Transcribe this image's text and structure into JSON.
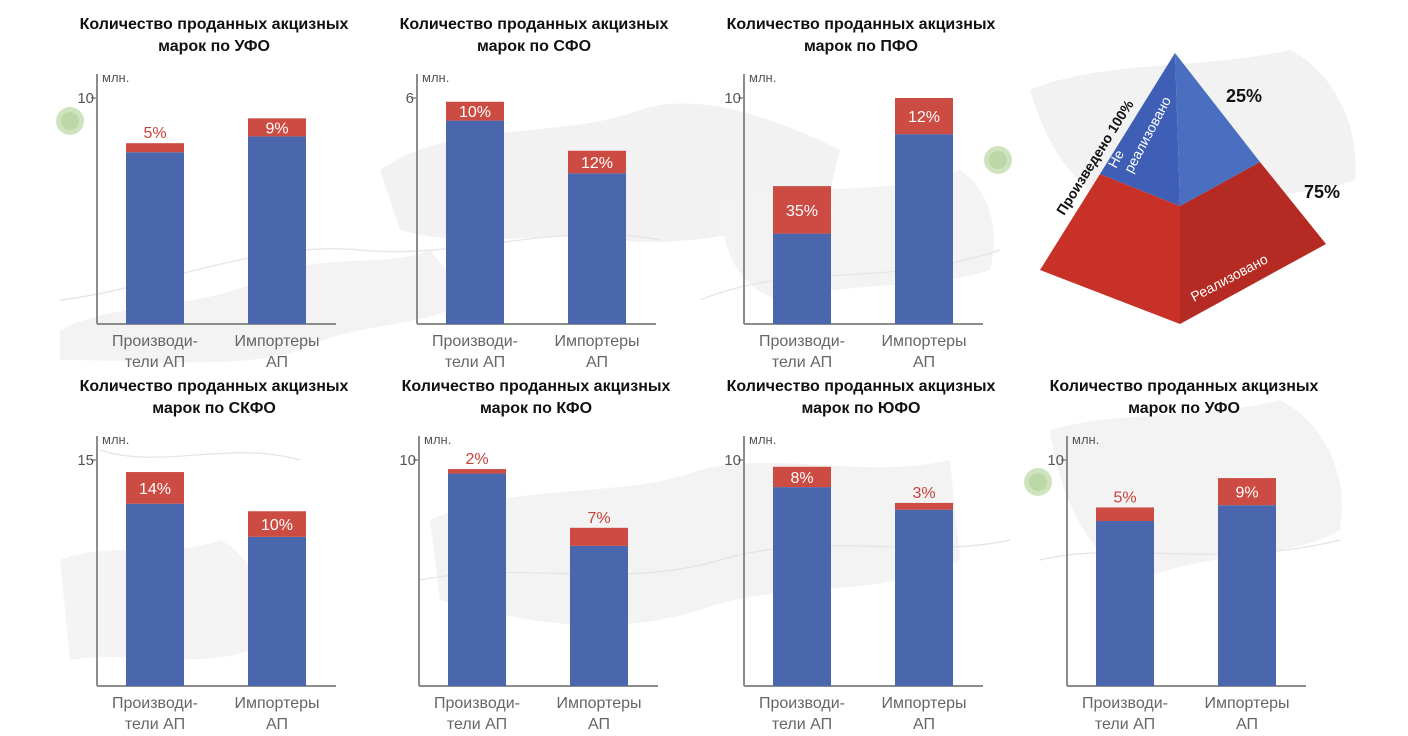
{
  "colors": {
    "produced_blue": "#4a67ae",
    "excess_red": "#cc4b43",
    "label_red": "#c8413a",
    "axis_grey": "#8c8c8c",
    "pyramid_red": "#c83127",
    "pyramid_blue": "#3e5fb5"
  },
  "charts": [
    {
      "title_line1": "Количество проданных акцизных",
      "title_line2": "марок по УФО",
      "unit": "млн.",
      "ytick": "10",
      "chart_data": {
        "type": "bar",
        "stacked": true,
        "ylim": [
          0,
          10
        ],
        "ytick_value": 10,
        "categories": [
          [
            "Производи-",
            "тели АП"
          ],
          [
            "Импортеры",
            "АП"
          ]
        ],
        "values": [
          7.6,
          8.3
        ],
        "tops": [
          8.0,
          9.1
        ],
        "labels": [
          "5%",
          "9%"
        ],
        "label_inside": [
          false,
          true
        ]
      }
    },
    {
      "title_line1": "Количество проданных акцизных",
      "title_line2": "марок по СФО",
      "unit": "млн.",
      "ytick": "6",
      "chart_data": {
        "type": "bar",
        "stacked": true,
        "ylim": [
          0,
          6
        ],
        "ytick_value": 6,
        "categories": [
          [
            "Производи-",
            "тели АП"
          ],
          [
            "Импортеры",
            "АП"
          ]
        ],
        "values": [
          5.4,
          4.0
        ],
        "tops": [
          5.9,
          4.6
        ],
        "labels": [
          "10%",
          "12%"
        ],
        "label_inside": [
          true,
          true
        ]
      }
    },
    {
      "title_line1": "Количество проданных акцизных",
      "title_line2": "марок по ПФО",
      "unit": "млн.",
      "ytick": "10",
      "chart_data": {
        "type": "bar",
        "stacked": true,
        "ylim": [
          0,
          10
        ],
        "ytick_value": 10,
        "categories": [
          [
            "Производи-",
            "тели АП"
          ],
          [
            "Импортеры",
            "АП"
          ]
        ],
        "values": [
          4.0,
          8.4
        ],
        "tops": [
          6.1,
          10.0
        ],
        "labels": [
          "35%",
          "12%"
        ],
        "label_inside": [
          true,
          true
        ]
      }
    },
    {
      "title_line1": "Количество проданных акцизных",
      "title_line2": "марок по СКФО",
      "unit": "млн.",
      "ytick": "15",
      "chart_data": {
        "type": "bar",
        "stacked": true,
        "ylim": [
          0,
          15
        ],
        "ytick_value": 15,
        "categories": [
          [
            "Производи-",
            "тели АП"
          ],
          [
            "Импортеры",
            "АП"
          ]
        ],
        "values": [
          12.1,
          9.9
        ],
        "tops": [
          14.2,
          11.6
        ],
        "labels": [
          "14%",
          "10%"
        ],
        "label_inside": [
          true,
          true
        ]
      }
    },
    {
      "title_line1": "Количество проданных акцизных",
      "title_line2": "марок по КФО",
      "unit": "млн.",
      "ytick": "10",
      "chart_data": {
        "type": "bar",
        "stacked": true,
        "ylim": [
          0,
          10
        ],
        "ytick_value": 10,
        "categories": [
          [
            "Производи-",
            "тели АП"
          ],
          [
            "Импортеры",
            "АП"
          ]
        ],
        "values": [
          9.4,
          6.2
        ],
        "tops": [
          9.6,
          7.0
        ],
        "labels": [
          "2%",
          "7%"
        ],
        "label_inside": [
          false,
          false
        ]
      }
    },
    {
      "title_line1": "Количество проданных акцизных",
      "title_line2": "марок по ЮФО",
      "unit": "млн.",
      "ytick": "10",
      "chart_data": {
        "type": "bar",
        "stacked": true,
        "ylim": [
          0,
          10
        ],
        "ytick_value": 10,
        "categories": [
          [
            "Производи-",
            "тели АП"
          ],
          [
            "Импортеры",
            "АП"
          ]
        ],
        "values": [
          8.8,
          7.8
        ],
        "tops": [
          9.7,
          8.1
        ],
        "labels": [
          "8%",
          "3%"
        ],
        "label_inside": [
          true,
          false
        ]
      }
    },
    {
      "title_line1": "Количество проданных акцизных",
      "title_line2": "марок по УФО",
      "unit": "млн.",
      "ytick": "10",
      "chart_data": {
        "type": "bar",
        "stacked": true,
        "ylim": [
          0,
          10
        ],
        "ytick_value": 10,
        "categories": [
          [
            "Производи-",
            "тели АП"
          ],
          [
            "Импортеры",
            "АП"
          ]
        ],
        "values": [
          7.3,
          8.0
        ],
        "tops": [
          7.9,
          9.2
        ],
        "labels": [
          "5%",
          "9%"
        ],
        "label_inside": [
          false,
          true
        ]
      }
    }
  ],
  "pyramid": {
    "side_label": "Произведено 100%",
    "top_label_line1": "Не",
    "top_label_line2": "реализовано",
    "bottom_label": "Реализовано",
    "top_pct": "25%",
    "bottom_pct": "75%",
    "chart_data": {
      "type": "pie",
      "categories": [
        "Не реализовано",
        "Реализовано"
      ],
      "values": [
        25,
        75
      ]
    }
  }
}
